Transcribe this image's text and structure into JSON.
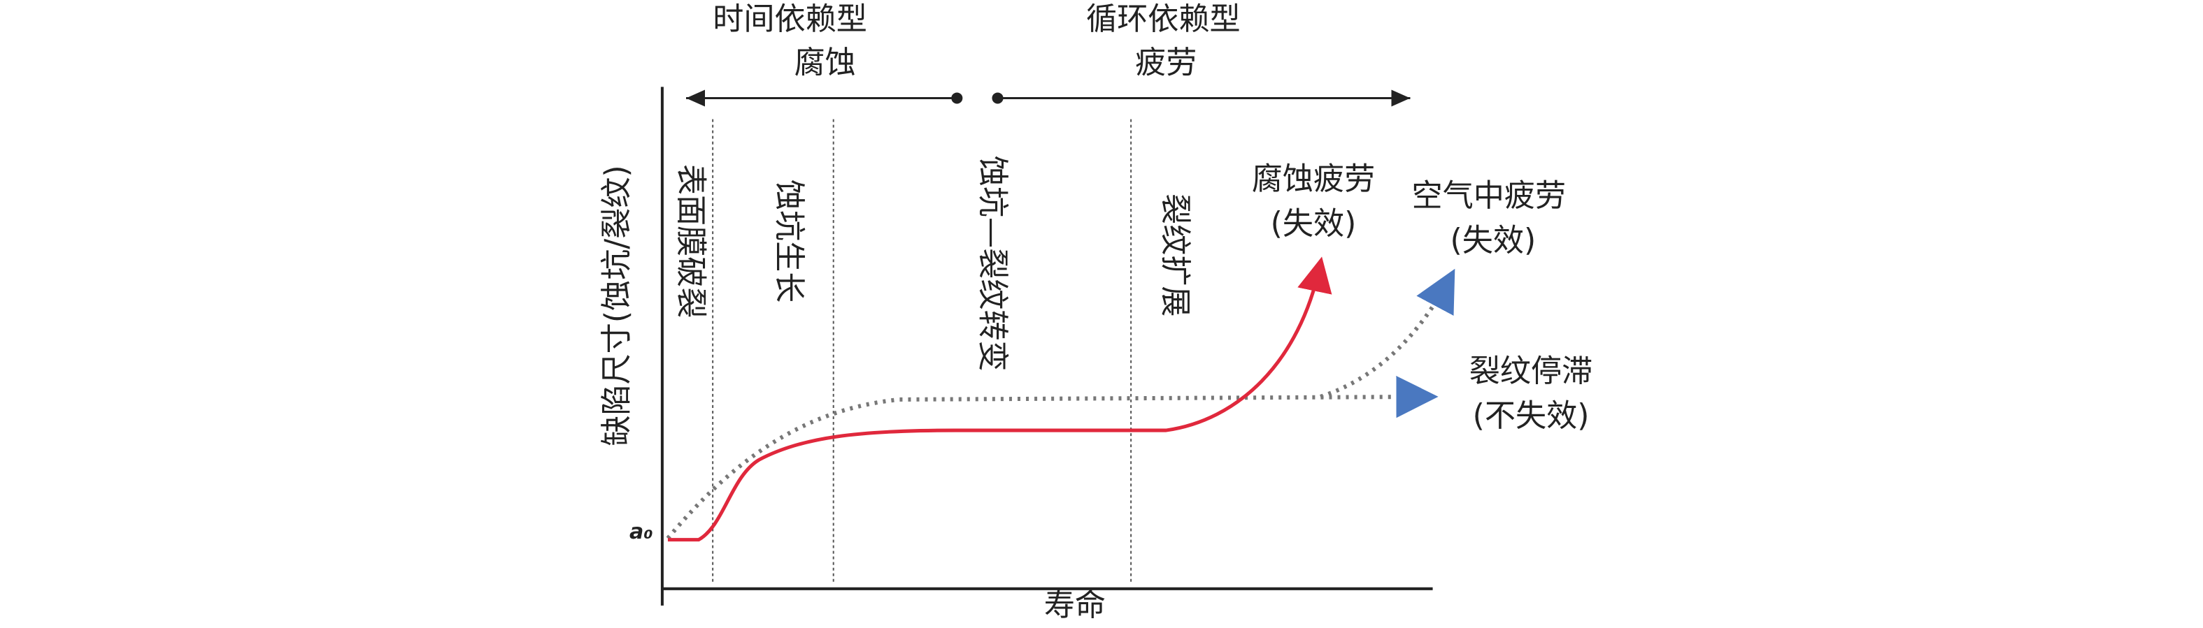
{
  "phases": {
    "corrosion": {
      "line1": "时间依赖型",
      "line2": "腐蚀"
    },
    "fatigue": {
      "line1": "循环依赖型",
      "line2": "疲劳"
    }
  },
  "axes": {
    "y_label": "缺陷尺寸(蚀坑/裂纹)",
    "x_label": "寿命",
    "origin_label": "a₀"
  },
  "stages": [
    "表面膜破裂",
    "蚀坑生长",
    "蚀坑—裂纹转变",
    "裂纹扩展"
  ],
  "outcomes": {
    "corrosion_fatigue": {
      "line1": "腐蚀疲劳",
      "line2": "(失效)"
    },
    "air_fatigue": {
      "line1": "空气中疲劳",
      "line2": "(失效)"
    },
    "crack_arrest": {
      "line1": "裂纹停滞",
      "line2": "(不失效)"
    }
  }
}
